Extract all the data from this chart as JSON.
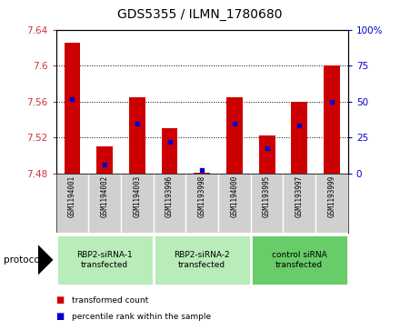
{
  "title": "GDS5355 / ILMN_1780680",
  "samples": [
    "GSM1194001",
    "GSM1194002",
    "GSM1194003",
    "GSM1193996",
    "GSM1193998",
    "GSM1194000",
    "GSM1193995",
    "GSM1193997",
    "GSM1193999"
  ],
  "bar_tops": [
    7.625,
    7.51,
    7.565,
    7.53,
    7.481,
    7.565,
    7.522,
    7.56,
    7.6
  ],
  "bar_base": 7.48,
  "blue_dots": [
    7.563,
    7.49,
    7.535,
    7.515,
    7.484,
    7.535,
    7.508,
    7.533,
    7.56
  ],
  "ylim": [
    7.48,
    7.64
  ],
  "yticks_left": [
    7.48,
    7.52,
    7.56,
    7.6,
    7.64
  ],
  "yticks_right": [
    0,
    25,
    50,
    75,
    100
  ],
  "groups": [
    {
      "label": "RBP2-siRNA-1\ntransfected",
      "start": 0,
      "end": 3,
      "color": "#b8ecb8"
    },
    {
      "label": "RBP2-siRNA-2\ntransfected",
      "start": 3,
      "end": 6,
      "color": "#b8ecb8"
    },
    {
      "label": "control siRNA\ntransfected",
      "start": 6,
      "end": 9,
      "color": "#68cc68"
    }
  ],
  "bar_color": "#cc0000",
  "dot_color": "#0000cc",
  "left_tick_color": "#cc3333",
  "right_tick_color": "#0000cc",
  "grid_color": "#000000",
  "plot_bg": "#ffffff",
  "sample_area_bg": "#d0d0d0",
  "protocol_label": "protocol",
  "legend_items": [
    {
      "color": "#cc0000",
      "label": "transformed count"
    },
    {
      "color": "#0000cc",
      "label": "percentile rank within the sample"
    }
  ]
}
